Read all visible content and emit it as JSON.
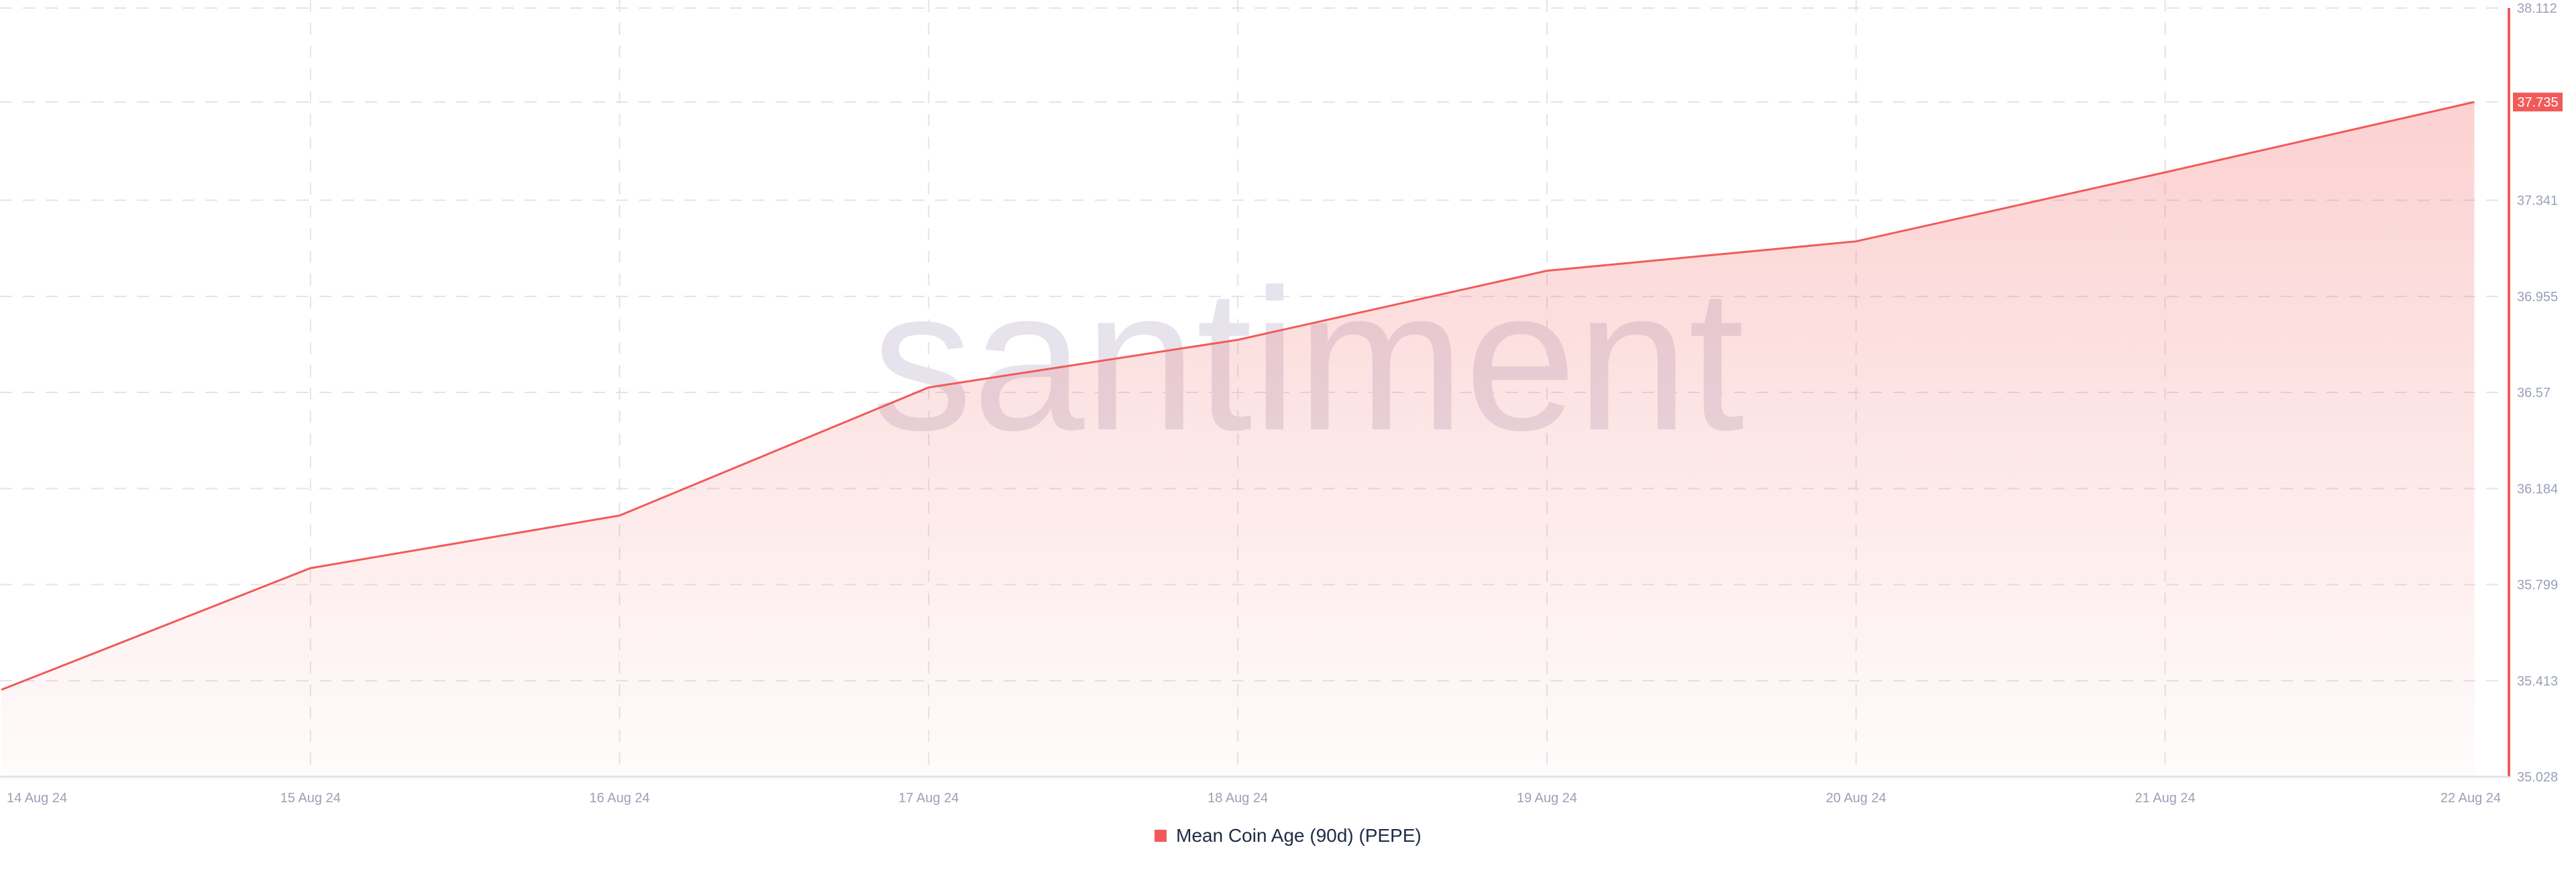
{
  "chart_data": {
    "type": "area",
    "title": "",
    "xlabel": "",
    "ylabel": "",
    "categories": [
      "14 Aug 24",
      "15 Aug 24",
      "16 Aug 24",
      "17 Aug 24",
      "18 Aug 24",
      "19 Aug 24",
      "20 Aug 24",
      "21 Aug 24",
      "22 Aug 24"
    ],
    "series": [
      {
        "name": "Mean Coin Age (90d) (PEPE)",
        "color": "#f25a5a",
        "values": [
          35.377,
          35.865,
          36.076,
          36.59,
          36.781,
          37.058,
          37.176,
          37.453,
          37.735
        ]
      }
    ],
    "ylim": [
      35.028,
      38.112
    ],
    "yticks": [
      "38.112",
      "37.735",
      "37.341",
      "36.955",
      "36.57",
      "36.184",
      "35.799",
      "35.413",
      "35.028"
    ],
    "last_value_label": "37.735",
    "grid": true,
    "y_axis_position": "right",
    "legend_position": "bottom-center",
    "watermark": "santiment"
  }
}
